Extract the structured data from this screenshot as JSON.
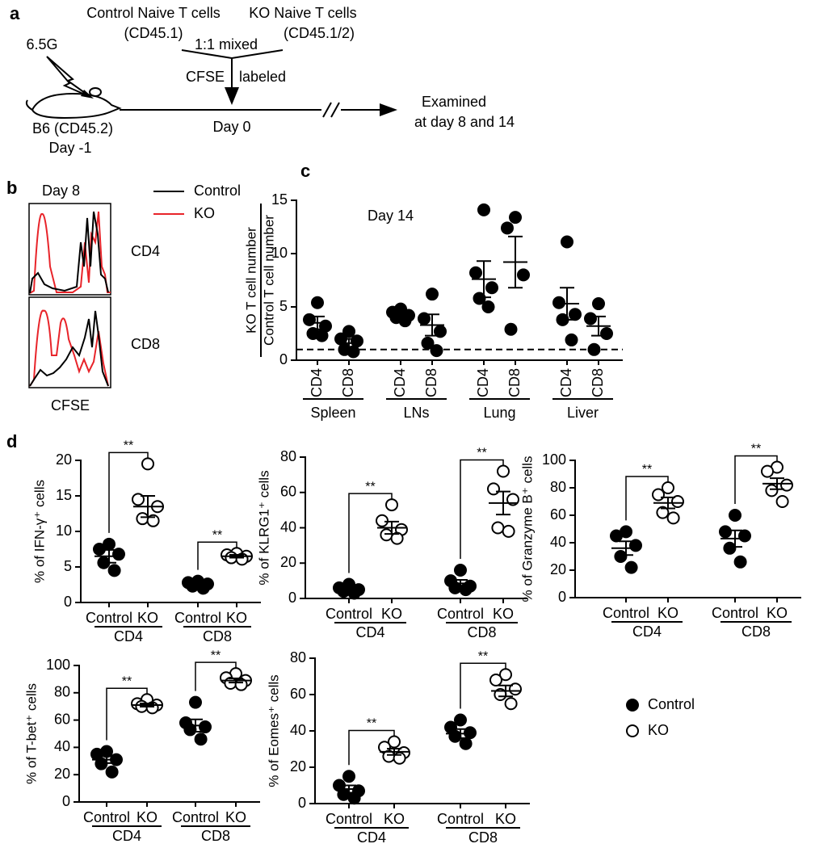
{
  "panel_labels": [
    "a",
    "b",
    "c",
    "d"
  ],
  "schematic": {
    "irradiation": "6.5G",
    "host": "B6 (CD45.2)",
    "host_day": "Day -1",
    "control_cells": "Control Naive T cells",
    "control_marker": "(CD45.1)",
    "ko_cells": "KO Naive T cells",
    "ko_marker": "(CD45.1/2)",
    "mixed": "1:1 mixed",
    "cfse": "CFSE",
    "labeled": "labeled",
    "day0": "Day 0",
    "examined": "Examined",
    "examined_days": "at day 8 and 14"
  },
  "histogram": {
    "title": "Day 8",
    "legend": [
      {
        "name": "Control",
        "color": "#000000"
      },
      {
        "name": "KO",
        "color": "#e8242a"
      }
    ],
    "rows": [
      "CD4",
      "CD8"
    ],
    "xlabel": "CFSE"
  },
  "legend": {
    "series": [
      {
        "name": "Control",
        "fill": "#000000"
      },
      {
        "name": "KO",
        "fill": "#ffffff"
      }
    ]
  },
  "chart_data": [
    {
      "type": "dot",
      "title": "Day 14",
      "ylabel": [
        "KO T cell number",
        "Control T cell number"
      ],
      "categories": [
        "CD4",
        "CD8",
        "CD4",
        "CD8",
        "CD4",
        "CD8",
        "CD4",
        "CD8"
      ],
      "groups": [
        "Spleen",
        "LNs",
        "Lung",
        "Liver"
      ],
      "points": [
        [
          5.4,
          3.8,
          3.2,
          2.5,
          2.3
        ],
        [
          2.7,
          2.0,
          1.8,
          1.0,
          0.8
        ],
        [
          4.8,
          4.5,
          4.2,
          4.0,
          3.7
        ],
        [
          6.2,
          3.9,
          2.7,
          1.6,
          0.9
        ],
        [
          14.1,
          8.2,
          6.8,
          5.8,
          5.0
        ],
        [
          13.4,
          12.4,
          8.0,
          2.9
        ],
        [
          11.1,
          5.4,
          4.3,
          3.8,
          1.9
        ],
        [
          5.3,
          3.9,
          2.5,
          1.0
        ]
      ],
      "means": [
        3.5,
        1.6,
        4.2,
        3.3,
        7.6,
        9.2,
        5.3,
        3.2
      ],
      "sems": [
        0.6,
        0.4,
        0.3,
        1.0,
        1.7,
        2.4,
        1.5,
        0.9
      ],
      "reference_line": 1,
      "color": "#000000",
      "ylim": [
        0,
        15
      ],
      "yticks": [
        0,
        5,
        10,
        15
      ]
    },
    {
      "type": "dot",
      "ylabel": "% of IFN-γ⁺ cells",
      "categories": [
        "Control",
        "KO",
        "Control",
        "KO"
      ],
      "groups": [
        "CD4",
        "CD8"
      ],
      "points": [
        [
          8.2,
          7.5,
          6.8,
          5.6,
          4.5
        ],
        [
          19.5,
          14.5,
          13.5,
          11.8,
          11.5
        ],
        [
          3.0,
          2.8,
          2.6,
          2.3,
          2.0
        ],
        [
          6.9,
          6.7,
          6.5,
          6.3,
          6.1
        ]
      ],
      "means": [
        6.5,
        13.5,
        2.6,
        6.5
      ],
      "sems": [
        0.9,
        1.5,
        0.3,
        0.2
      ],
      "significance": [
        "**",
        "**"
      ],
      "ylim": [
        0,
        20
      ],
      "yticks": [
        0,
        5,
        10,
        15,
        20
      ]
    },
    {
      "type": "dot",
      "ylabel": "% of KLRG1⁺ cells",
      "categories": [
        "Control",
        "KO",
        "Control",
        "KO"
      ],
      "groups": [
        "CD4",
        "CD8"
      ],
      "points": [
        [
          8,
          6,
          5,
          4,
          3
        ],
        [
          53,
          44,
          39,
          36,
          34
        ],
        [
          16,
          10,
          7,
          6,
          5
        ],
        [
          72,
          62,
          56,
          40,
          38
        ]
      ],
      "means": [
        5.5,
        40,
        8.5,
        54
      ],
      "sems": [
        1,
        3.5,
        2,
        6.5
      ],
      "significance": [
        "**",
        "**"
      ],
      "ylim": [
        0,
        80
      ],
      "yticks": [
        0,
        20,
        40,
        60,
        80
      ]
    },
    {
      "type": "dot",
      "ylabel": "% of Granzyme B⁺ cells",
      "categories": [
        "Control",
        "KO",
        "Control",
        "KO"
      ],
      "groups": [
        "CD4",
        "CD8"
      ],
      "points": [
        [
          48,
          45,
          38,
          30,
          22
        ],
        [
          80,
          75,
          70,
          62,
          58
        ],
        [
          60,
          48,
          45,
          36,
          26
        ],
        [
          95,
          92,
          82,
          78,
          70
        ]
      ],
      "means": [
        36,
        69,
        43,
        83
      ],
      "sems": [
        5,
        4,
        6,
        4
      ],
      "significance": [
        "**",
        "**"
      ],
      "ylim": [
        0,
        100
      ],
      "yticks": [
        0,
        20,
        40,
        60,
        80,
        100
      ]
    },
    {
      "type": "dot",
      "ylabel": "% of T-bet⁺ cells",
      "categories": [
        "Control",
        "KO",
        "Control",
        "KO"
      ],
      "groups": [
        "CD4",
        "CD8"
      ],
      "points": [
        [
          37,
          35,
          31,
          28,
          22
        ],
        [
          75,
          72,
          71,
          70,
          69
        ],
        [
          73,
          58,
          55,
          53,
          46
        ],
        [
          94,
          91,
          89,
          87,
          86
        ]
      ],
      "means": [
        31,
        71,
        56,
        89
      ],
      "sems": [
        2.5,
        1.2,
        4.5,
        1.5
      ],
      "significance": [
        "**",
        "**"
      ],
      "ylim": [
        0,
        100
      ],
      "yticks": [
        0,
        20,
        40,
        60,
        80,
        100
      ]
    },
    {
      "type": "dot",
      "ylabel": "% of Eomes⁺ cells",
      "categories": [
        "Control",
        "KO",
        "Control",
        "KO"
      ],
      "groups": [
        "CD4",
        "CD8"
      ],
      "points": [
        [
          15,
          10,
          7,
          5,
          3
        ],
        [
          34,
          31,
          28,
          26,
          25
        ],
        [
          46,
          42,
          39,
          37,
          33
        ],
        [
          71,
          68,
          63,
          60,
          55
        ]
      ],
      "means": [
        8,
        28.5,
        38.5,
        62
      ],
      "sems": [
        2,
        1.7,
        2.5,
        3
      ],
      "significance": [
        "**",
        "**"
      ],
      "ylim": [
        0,
        80
      ],
      "yticks": [
        0,
        20,
        40,
        60,
        80
      ]
    }
  ]
}
